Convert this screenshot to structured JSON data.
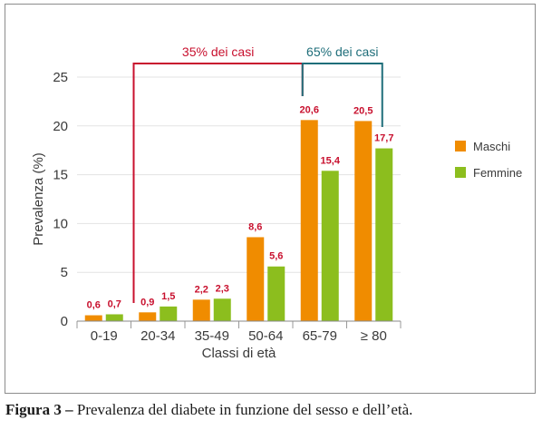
{
  "chart_data": {
    "type": "bar",
    "categories": [
      "0-19",
      "20-34",
      "35-49",
      "50-64",
      "65-79",
      "≥ 80"
    ],
    "series": [
      {
        "name": "Maschi",
        "values": [
          0.6,
          0.9,
          2.2,
          8.6,
          20.6,
          20.5
        ],
        "labels": [
          "0,6",
          "0,9",
          "2,2",
          "8,6",
          "20,6",
          "20,5"
        ],
        "color": "#f08c00"
      },
      {
        "name": "Femmine",
        "values": [
          0.7,
          1.5,
          2.3,
          5.6,
          15.4,
          17.7
        ],
        "labels": [
          "0,7",
          "1,5",
          "2,3",
          "5,6",
          "15,4",
          "17,7"
        ],
        "color": "#8cbe1e"
      }
    ],
    "xlabel": "Classi di età",
    "ylabel": "Prevalenza (%)",
    "ylim": [
      0,
      25
    ],
    "yticks": [
      0,
      5,
      10,
      15,
      20,
      25
    ],
    "grid": true,
    "legend_position": "right",
    "value_label_color": "#c8102e",
    "annotations": [
      {
        "text": "35% dei casi",
        "from_category": "20-34",
        "to_category": "65-79",
        "color": "#c8102e"
      },
      {
        "text": "65% dei casi",
        "from_category": "65-79",
        "to_category": "≥ 80",
        "color": "#1f6e7a"
      }
    ]
  },
  "caption": {
    "label": "Figura 3 –",
    "text": " Prevalenza del diabete in funzione del sesso e dell’età."
  }
}
